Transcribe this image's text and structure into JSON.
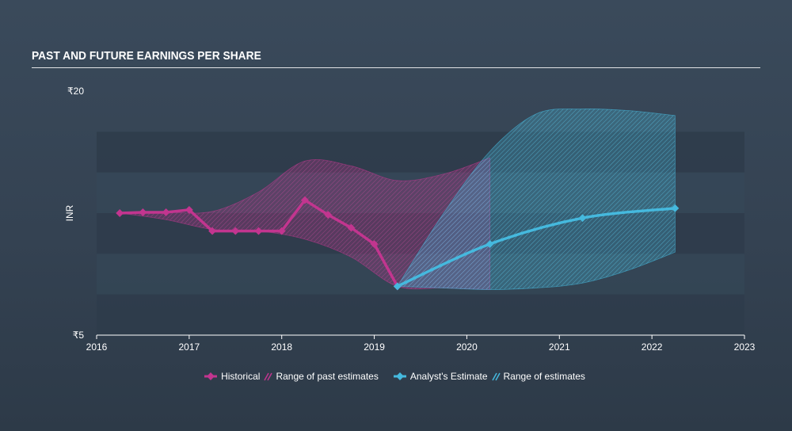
{
  "title": "PAST AND FUTURE EARNINGS PER SHARE",
  "colors": {
    "historical": "#c2358f",
    "estimate": "#45b9de",
    "band_dark": "#2f3c4b",
    "band_light": "#35495a"
  },
  "chart_data": {
    "type": "line",
    "title": "PAST AND FUTURE EARNINGS PER SHARE",
    "ylabel": "INR",
    "xlim": [
      2016,
      2023
    ],
    "ylim": [
      5,
      20
    ],
    "x_ticks": [
      "2016",
      "2017",
      "2018",
      "2019",
      "2020",
      "2021",
      "2022",
      "2023"
    ],
    "y_ticks": [
      "₹20",
      "₹5"
    ],
    "series": [
      {
        "name": "Historical",
        "x": [
          2016.25,
          2016.5,
          2016.75,
          2017.0,
          2017.25,
          2017.5,
          2017.75,
          2018.0,
          2018.25,
          2018.5,
          2018.75,
          2019.0,
          2019.25
        ],
        "y": [
          12.5,
          12.55,
          12.55,
          12.7,
          11.4,
          11.4,
          11.4,
          11.4,
          13.3,
          12.4,
          11.6,
          10.6,
          8.0
        ]
      },
      {
        "name": "Analyst's Estimate",
        "x": [
          2019.25,
          2020.25,
          2021.25,
          2022.25
        ],
        "y": [
          8.0,
          10.6,
          12.2,
          12.8
        ]
      }
    ],
    "ranges": [
      {
        "name": "Range of past estimates",
        "x": [
          2016.25,
          2016.75,
          2017.25,
          2017.75,
          2018.25,
          2018.75,
          2019.25,
          2019.75,
          2020.25
        ],
        "high": [
          12.5,
          12.55,
          12.6,
          13.8,
          15.7,
          15.4,
          14.5,
          14.9,
          15.9
        ],
        "low": [
          12.5,
          12.1,
          11.5,
          11.4,
          10.9,
          9.8,
          8.0,
          7.9,
          7.8
        ]
      },
      {
        "name": "Range of estimates",
        "x": [
          2019.25,
          2019.75,
          2020.25,
          2020.75,
          2021.25,
          2021.75,
          2022.25
        ],
        "high": [
          8.0,
          12.5,
          16.3,
          18.6,
          18.9,
          18.8,
          18.5
        ],
        "low": [
          8.0,
          7.9,
          7.8,
          7.9,
          8.2,
          9.0,
          10.1
        ]
      }
    ],
    "legend": [
      "Historical",
      "Range of past estimates",
      "Analyst's Estimate",
      "Range of estimates"
    ],
    "legend_position": "bottom",
    "grid": false
  }
}
